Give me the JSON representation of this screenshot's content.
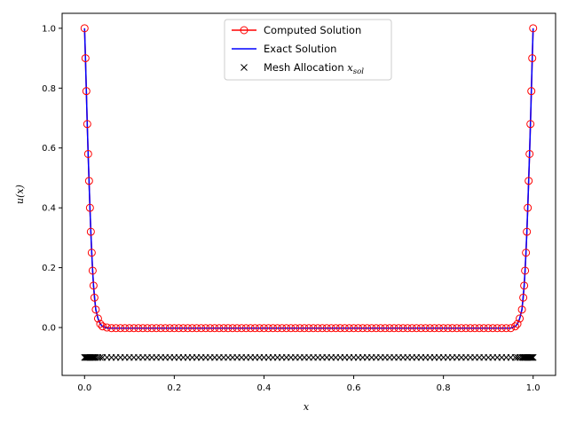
{
  "chart_data": {
    "type": "line",
    "xlabel": "x",
    "ylabel": "u(x)",
    "xlim": [
      -0.05,
      1.05
    ],
    "ylim": [
      -0.16,
      1.05
    ],
    "xticks": [
      "0.0",
      "0.2",
      "0.4",
      "0.6",
      "0.8",
      "1.0"
    ],
    "yticks": [
      "0.0",
      "0.2",
      "0.4",
      "0.6",
      "0.8",
      "1.0"
    ],
    "grid": false,
    "legend": {
      "placement": "top-center",
      "entries": [
        {
          "label": "Computed Solution",
          "color": "#ff0000",
          "marker": "circle-open"
        },
        {
          "label": "Exact Solution",
          "color": "#0000ff",
          "marker": "line"
        },
        {
          "label_main": "Mesh Allocation ",
          "label_var": "x",
          "label_sub": "sol",
          "color": "#000000",
          "marker": "x"
        }
      ]
    },
    "series": [
      {
        "name": "Computed Solution",
        "color": "#ff0000",
        "x": [
          0.0,
          0.002,
          0.004,
          0.006,
          0.008,
          0.01,
          0.012,
          0.014,
          0.016,
          0.018,
          0.02,
          0.022,
          0.025,
          0.03,
          0.035,
          0.04,
          0.05,
          0.06,
          0.07,
          0.08,
          0.09,
          0.1,
          0.11,
          0.12,
          0.13,
          0.14,
          0.15,
          0.16,
          0.17,
          0.18,
          0.19,
          0.2,
          0.21,
          0.22,
          0.23,
          0.24,
          0.25,
          0.26,
          0.27,
          0.28,
          0.29,
          0.3,
          0.31,
          0.32,
          0.33,
          0.34,
          0.35,
          0.36,
          0.37,
          0.38,
          0.39,
          0.4,
          0.41,
          0.42,
          0.43,
          0.44,
          0.45,
          0.46,
          0.47,
          0.48,
          0.49,
          0.5,
          0.51,
          0.52,
          0.53,
          0.54,
          0.55,
          0.56,
          0.57,
          0.58,
          0.59,
          0.6,
          0.61,
          0.62,
          0.63,
          0.64,
          0.65,
          0.66,
          0.67,
          0.68,
          0.69,
          0.7,
          0.71,
          0.72,
          0.73,
          0.74,
          0.75,
          0.76,
          0.77,
          0.78,
          0.79,
          0.8,
          0.81,
          0.82,
          0.83,
          0.84,
          0.85,
          0.86,
          0.87,
          0.88,
          0.89,
          0.9,
          0.91,
          0.92,
          0.93,
          0.94,
          0.95,
          0.96,
          0.965,
          0.97,
          0.975,
          0.978,
          0.98,
          0.982,
          0.984,
          0.986,
          0.988,
          0.99,
          0.992,
          0.994,
          0.996,
          0.998,
          1.0
        ],
        "y": [
          1.0,
          0.9,
          0.79,
          0.68,
          0.58,
          0.49,
          0.4,
          0.32,
          0.25,
          0.19,
          0.14,
          0.1,
          0.06,
          0.03,
          0.012,
          0.004,
          0.0,
          -0.002,
          -0.002,
          -0.002,
          -0.002,
          -0.002,
          -0.002,
          -0.002,
          -0.002,
          -0.002,
          -0.002,
          -0.002,
          -0.002,
          -0.002,
          -0.002,
          -0.002,
          -0.002,
          -0.002,
          -0.002,
          -0.002,
          -0.002,
          -0.002,
          -0.002,
          -0.002,
          -0.002,
          -0.002,
          -0.002,
          -0.002,
          -0.002,
          -0.002,
          -0.002,
          -0.002,
          -0.002,
          -0.002,
          -0.002,
          -0.002,
          -0.002,
          -0.002,
          -0.002,
          -0.002,
          -0.002,
          -0.002,
          -0.002,
          -0.002,
          -0.002,
          -0.002,
          -0.002,
          -0.002,
          -0.002,
          -0.002,
          -0.002,
          -0.002,
          -0.002,
          -0.002,
          -0.002,
          -0.002,
          -0.002,
          -0.002,
          -0.002,
          -0.002,
          -0.002,
          -0.002,
          -0.002,
          -0.002,
          -0.002,
          -0.002,
          -0.002,
          -0.002,
          -0.002,
          -0.002,
          -0.002,
          -0.002,
          -0.002,
          -0.002,
          -0.002,
          -0.002,
          -0.002,
          -0.002,
          -0.002,
          -0.002,
          -0.002,
          -0.002,
          -0.002,
          -0.002,
          -0.002,
          -0.002,
          -0.002,
          -0.002,
          -0.002,
          -0.002,
          -0.002,
          0.004,
          0.012,
          0.03,
          0.06,
          0.1,
          0.14,
          0.19,
          0.25,
          0.32,
          0.4,
          0.49,
          0.58,
          0.68,
          0.79,
          0.9,
          1.0
        ]
      },
      {
        "name": "Exact Solution",
        "color": "#0000ff",
        "x": [
          0.0,
          0.002,
          0.004,
          0.006,
          0.008,
          0.01,
          0.012,
          0.014,
          0.016,
          0.018,
          0.02,
          0.025,
          0.03,
          0.035,
          0.04,
          0.05,
          0.95,
          0.96,
          0.965,
          0.97,
          0.975,
          0.98,
          0.982,
          0.984,
          0.986,
          0.988,
          0.99,
          0.992,
          0.994,
          0.996,
          0.998,
          1.0
        ],
        "y": [
          1.0,
          0.9,
          0.79,
          0.68,
          0.58,
          0.49,
          0.4,
          0.32,
          0.25,
          0.19,
          0.14,
          0.06,
          0.03,
          0.012,
          0.004,
          -0.002,
          -0.002,
          0.004,
          0.012,
          0.03,
          0.06,
          0.14,
          0.19,
          0.25,
          0.32,
          0.4,
          0.49,
          0.58,
          0.68,
          0.79,
          0.9,
          1.0
        ]
      },
      {
        "name": "Mesh Allocation",
        "color": "#000000",
        "marker": "x",
        "y_level": -0.1,
        "x": [
          0.0,
          0.002,
          0.004,
          0.006,
          0.008,
          0.01,
          0.012,
          0.014,
          0.016,
          0.018,
          0.02,
          0.022,
          0.025,
          0.03,
          0.035,
          0.04,
          0.05,
          0.06,
          0.07,
          0.08,
          0.09,
          0.1,
          0.11,
          0.12,
          0.13,
          0.14,
          0.15,
          0.16,
          0.17,
          0.18,
          0.19,
          0.2,
          0.21,
          0.22,
          0.23,
          0.24,
          0.25,
          0.26,
          0.27,
          0.28,
          0.29,
          0.3,
          0.31,
          0.32,
          0.33,
          0.34,
          0.35,
          0.36,
          0.37,
          0.38,
          0.39,
          0.4,
          0.41,
          0.42,
          0.43,
          0.44,
          0.45,
          0.46,
          0.47,
          0.48,
          0.49,
          0.5,
          0.51,
          0.52,
          0.53,
          0.54,
          0.55,
          0.56,
          0.57,
          0.58,
          0.59,
          0.6,
          0.61,
          0.62,
          0.63,
          0.64,
          0.65,
          0.66,
          0.67,
          0.68,
          0.69,
          0.7,
          0.71,
          0.72,
          0.73,
          0.74,
          0.75,
          0.76,
          0.77,
          0.78,
          0.79,
          0.8,
          0.81,
          0.82,
          0.83,
          0.84,
          0.85,
          0.86,
          0.87,
          0.88,
          0.89,
          0.9,
          0.91,
          0.92,
          0.93,
          0.94,
          0.95,
          0.96,
          0.965,
          0.97,
          0.975,
          0.978,
          0.98,
          0.982,
          0.984,
          0.986,
          0.988,
          0.99,
          0.992,
          0.994,
          0.996,
          0.998,
          1.0
        ]
      }
    ]
  }
}
